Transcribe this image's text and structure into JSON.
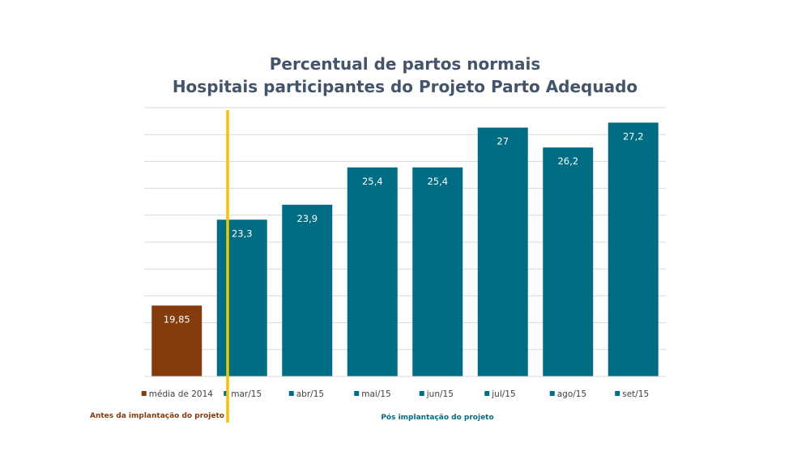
{
  "chart_data": {
    "type": "bar",
    "title_lines": [
      "Percentual de partos normais",
      "Hospitais participantes do Projeto Parto Adequado"
    ],
    "categories": [
      "média de 2014",
      "mar/15",
      "abr/15",
      "mai/15",
      "jun/15",
      "jul/15",
      "ago/15",
      "set/15"
    ],
    "values": [
      19.85,
      23.3,
      23.9,
      25.4,
      25.4,
      27,
      26.2,
      27.2
    ],
    "value_labels": [
      "19,85",
      "23,3",
      "23,9",
      "25,4",
      "25,4",
      "27",
      "26,2",
      "27,2"
    ],
    "ylim": [
      17,
      27.8
    ],
    "grid": true,
    "xlabel": "",
    "ylabel": "",
    "series_colors": [
      "#843c0c",
      "#006d84",
      "#006d84",
      "#006d84",
      "#006d84",
      "#006d84",
      "#006d84",
      "#006d84"
    ],
    "divider_color": "#f5c400",
    "annotations": {
      "before": {
        "text": "Antes da  implantação do projeto",
        "color": "#843c0c"
      },
      "after": {
        "text": "Pós implantação do projeto",
        "color": "#006d84"
      }
    }
  }
}
